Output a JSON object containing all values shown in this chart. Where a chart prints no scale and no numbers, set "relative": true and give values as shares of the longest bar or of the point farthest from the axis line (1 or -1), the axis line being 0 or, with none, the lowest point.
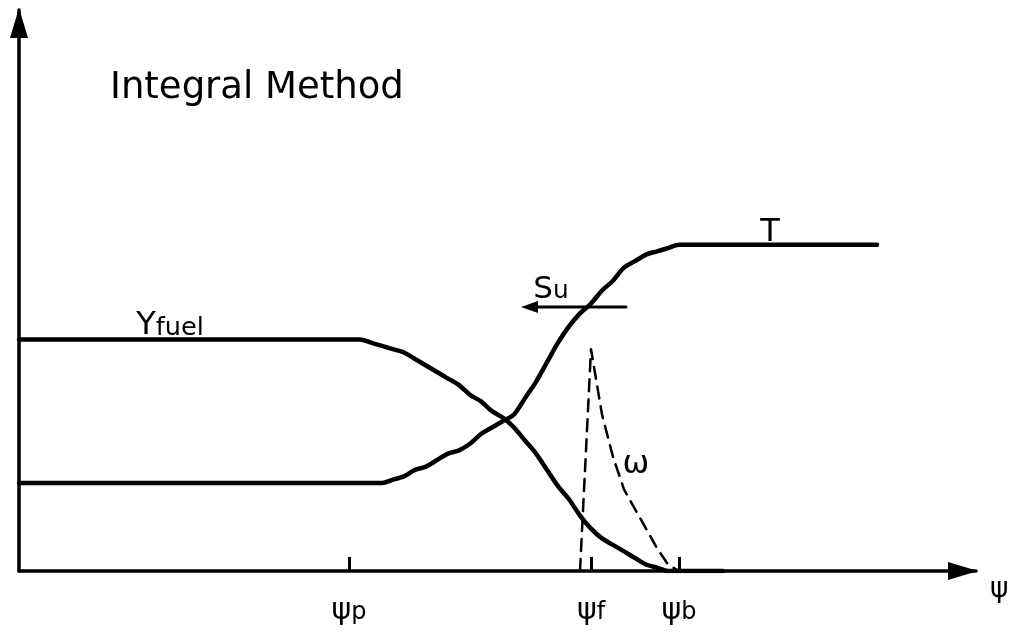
{
  "chart_data": {
    "type": "line",
    "title": "Integral Method",
    "xlabel": "ψ",
    "relative": true,
    "categories": [
      null,
      null,
      null,
      null,
      null,
      null,
      null,
      null,
      null,
      null,
      null,
      null,
      null,
      null,
      null,
      null,
      null,
      null,
      null,
      null,
      null,
      null,
      null,
      null,
      null,
      null,
      null,
      null,
      null,
      null,
      "ψ$_{p}$",
      null,
      null,
      null,
      null,
      null,
      null,
      null,
      null,
      null,
      null,
      null,
      null,
      null,
      null,
      null,
      null,
      null,
      null,
      null,
      null,
      null,
      "ψ$_{f}$",
      null,
      null,
      null,
      null,
      null,
      null,
      null,
      "ψ$_{b}$",
      null,
      null,
      null,
      null,
      null,
      null,
      null,
      null,
      null,
      null,
      null,
      null,
      null,
      null,
      null,
      null,
      null,
      null,
      null,
      null,
      null,
      null,
      null,
      null,
      null,
      null,
      null
    ],
    "tick_labels": "x",
    "marker": "none",
    "annotations": [
      {
        "text": "S$_{u}$",
        "x": "ψ$_{f}$",
        "y": 0.82
      }
    ],
    "series": [
      {
        "name": "Y$_{fuel}$",
        "color": "#000000",
        "line_style": "solid",
        "values": [
          0.71,
          0.71,
          0.71,
          0.71,
          0.71,
          0.71,
          0.71,
          0.71,
          0.71,
          0.71,
          0.71,
          0.71,
          0.71,
          0.71,
          0.71,
          0.71,
          0.71,
          0.71,
          0.71,
          0.71,
          0.71,
          0.71,
          0.71,
          0.71,
          0.71,
          0.71,
          0.71,
          0.71,
          0.71,
          0.71,
          0.71,
          0.71,
          0.7,
          0.69,
          0.68,
          0.67,
          0.65,
          0.63,
          0.61,
          0.59,
          0.57,
          0.54,
          0.52,
          0.49,
          0.47,
          0.44,
          0.4,
          0.36,
          0.31,
          0.26,
          0.22,
          0.17,
          0.13,
          0.1,
          0.08,
          0.06,
          0.04,
          0.02,
          0.01,
          0,
          0,
          0,
          0,
          0,
          0,
          null,
          null,
          null,
          null,
          null,
          null,
          null,
          null,
          null,
          null,
          null,
          null,
          null,
          null,
          null,
          null,
          null,
          null,
          null,
          null,
          null,
          null,
          null
        ]
      },
      {
        "name": "T",
        "color": "#000000",
        "line_style": "solid",
        "values": [
          0.27,
          0.27,
          0.27,
          0.27,
          0.27,
          0.27,
          0.27,
          0.27,
          0.27,
          0.27,
          0.27,
          0.27,
          0.27,
          0.27,
          0.27,
          0.27,
          0.27,
          0.27,
          0.27,
          0.27,
          0.27,
          0.27,
          0.27,
          0.27,
          0.27,
          0.27,
          0.27,
          0.27,
          0.27,
          0.27,
          0.27,
          0.27,
          0.27,
          0.27,
          0.28,
          0.29,
          0.31,
          0.32,
          0.34,
          0.36,
          0.37,
          0.39,
          0.42,
          0.44,
          0.46,
          0.48,
          0.53,
          0.58,
          0.64,
          0.7,
          0.75,
          0.79,
          0.82,
          0.86,
          0.89,
          0.93,
          0.95,
          0.97,
          0.98,
          0.99,
          1,
          1,
          1,
          1,
          1,
          1,
          1,
          1,
          1,
          1,
          1,
          1,
          1,
          1,
          1,
          1,
          1,
          1,
          1,
          null,
          null,
          null,
          null,
          null,
          null,
          null,
          null,
          null
        ]
      },
      {
        "name": "ω",
        "color": "#000000",
        "line_style": "dashed",
        "values": [
          null,
          null,
          null,
          null,
          null,
          null,
          null,
          null,
          null,
          null,
          null,
          null,
          null,
          null,
          null,
          null,
          null,
          null,
          null,
          null,
          null,
          null,
          null,
          null,
          null,
          null,
          null,
          null,
          null,
          null,
          null,
          null,
          null,
          null,
          null,
          null,
          null,
          null,
          null,
          null,
          null,
          null,
          null,
          null,
          null,
          null,
          null,
          null,
          null,
          null,
          null,
          0,
          0.68,
          0.48,
          0.35,
          0.25,
          0.19,
          0.13,
          0.07,
          0.02,
          0,
          null,
          null,
          null,
          null,
          null,
          null,
          null,
          null,
          null,
          null,
          null,
          null,
          null,
          null,
          null,
          null,
          null,
          null,
          null,
          null,
          null,
          null,
          null,
          null,
          null,
          null,
          null
        ]
      }
    ]
  }
}
